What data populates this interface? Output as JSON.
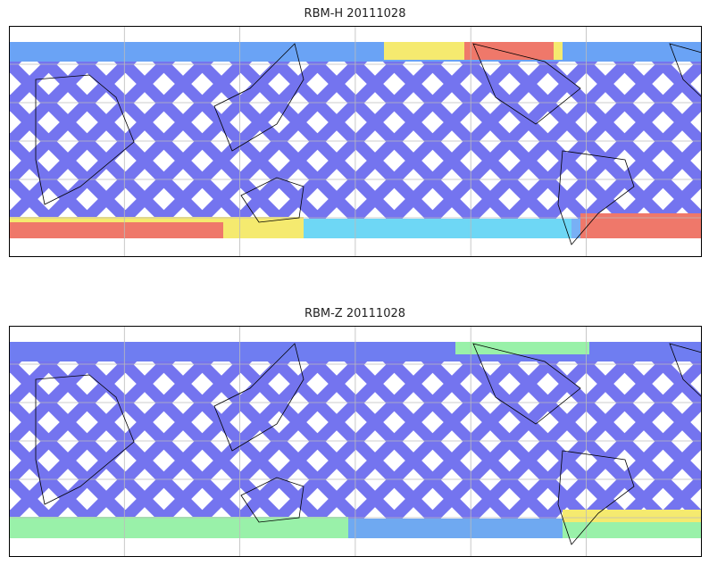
{
  "chart_data": [
    {
      "type": "heatmap",
      "title": "RBM-H 20111028",
      "projection": "cylindrical, centered on 180° longitude",
      "grid": true,
      "colormap": "jet",
      "high_regions": [
        "north Pacific near 60°N",
        "southern ocean south of 50°S"
      ],
      "palette": {
        "low": "#6666ee",
        "mid": "#5fd3f5",
        "green": "#8ef0a0",
        "yellow": "#f5e860",
        "high": "#ee6a5a"
      }
    },
    {
      "type": "heatmap",
      "title": "RBM-Z 20111028",
      "projection": "cylindrical, centered on 180° longitude",
      "grid": true,
      "colormap": "jet",
      "high_regions": [
        "southern ocean near South America"
      ],
      "palette": {
        "low": "#6666ee",
        "mid": "#5fd3f5",
        "green": "#8ef0a0",
        "yellow": "#f5e860",
        "high": "#ee6a5a"
      }
    }
  ]
}
